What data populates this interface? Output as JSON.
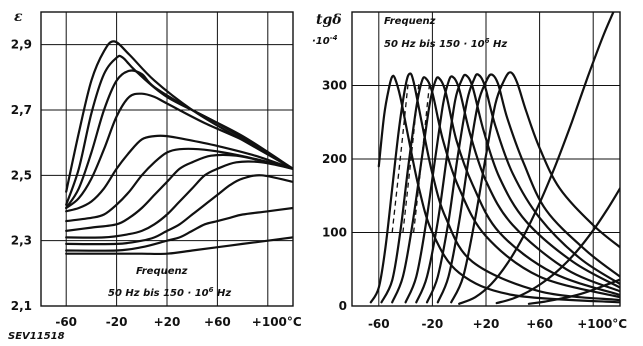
{
  "figure_id": "SEV11518",
  "chart_data": [
    {
      "type": "line",
      "title": "",
      "ylabel": "ε",
      "xunit": "°C",
      "xlim": [
        -80,
        120
      ],
      "ylim": [
        2.1,
        3.0
      ],
      "grid": true,
      "xticks": [
        {
          "value": -60,
          "label": "-60"
        },
        {
          "value": -20,
          "label": "-20"
        },
        {
          "value": 20,
          "label": "+20"
        },
        {
          "value": 60,
          "label": "+60"
        },
        {
          "value": 100,
          "label": "+100°C"
        }
      ],
      "yticks": [
        {
          "value": 2.1,
          "label": "2,1"
        },
        {
          "value": 2.3,
          "label": "2,3"
        },
        {
          "value": 2.5,
          "label": "2,5"
        },
        {
          "value": 2.7,
          "label": "2,7"
        },
        {
          "value": 2.9,
          "label": "2,9"
        }
      ],
      "gridlines_x": [
        -60,
        -20,
        20,
        60,
        100
      ],
      "gridlines_y": [
        2.3,
        2.5,
        2.7,
        2.9
      ],
      "annotation": [
        "Frequenz",
        "50 Hz bis 150 · 10^6 Hz"
      ],
      "series": [
        {
          "x": [
            -60,
            -50,
            -40,
            -30,
            -22,
            -10,
            10,
            40,
            70,
            120
          ],
          "y": [
            2.45,
            2.63,
            2.79,
            2.88,
            2.91,
            2.87,
            2.79,
            2.7,
            2.63,
            2.52
          ]
        },
        {
          "x": [
            -60,
            -50,
            -40,
            -30,
            -20,
            -15,
            -5,
            20,
            60,
            120
          ],
          "y": [
            2.41,
            2.52,
            2.69,
            2.81,
            2.86,
            2.86,
            2.82,
            2.74,
            2.66,
            2.52
          ]
        },
        {
          "x": [
            -60,
            -50,
            -40,
            -30,
            -20,
            -10,
            0,
            10,
            40,
            80,
            120
          ],
          "y": [
            2.4,
            2.46,
            2.57,
            2.7,
            2.79,
            2.82,
            2.81,
            2.77,
            2.7,
            2.62,
            2.52
          ]
        },
        {
          "x": [
            -60,
            -50,
            -40,
            -30,
            -20,
            -10,
            0,
            10,
            20,
            50,
            90,
            120
          ],
          "y": [
            2.4,
            2.43,
            2.49,
            2.58,
            2.68,
            2.74,
            2.75,
            2.74,
            2.72,
            2.66,
            2.59,
            2.52
          ]
        },
        {
          "x": [
            -60,
            -50,
            -40,
            -30,
            -20,
            -10,
            0,
            10,
            20,
            35,
            60,
            90,
            120
          ],
          "y": [
            2.39,
            2.4,
            2.42,
            2.46,
            2.52,
            2.57,
            2.61,
            2.62,
            2.62,
            2.61,
            2.59,
            2.56,
            2.52
          ]
        },
        {
          "x": [
            -60,
            -40,
            -30,
            -20,
            -10,
            0,
            10,
            20,
            30,
            45,
            65,
            90,
            120
          ],
          "y": [
            2.36,
            2.37,
            2.38,
            2.41,
            2.45,
            2.5,
            2.54,
            2.57,
            2.58,
            2.58,
            2.57,
            2.55,
            2.52
          ]
        },
        {
          "x": [
            -60,
            -40,
            -20,
            -10,
            0,
            10,
            20,
            30,
            40,
            55,
            75,
            100,
            120
          ],
          "y": [
            2.33,
            2.34,
            2.35,
            2.37,
            2.4,
            2.44,
            2.48,
            2.52,
            2.54,
            2.56,
            2.56,
            2.54,
            2.52
          ]
        },
        {
          "x": [
            -60,
            -30,
            -10,
            0,
            10,
            20,
            30,
            40,
            50,
            60,
            75,
            95,
            120
          ],
          "y": [
            2.31,
            2.31,
            2.32,
            2.33,
            2.35,
            2.38,
            2.42,
            2.46,
            2.5,
            2.52,
            2.54,
            2.54,
            2.52
          ]
        },
        {
          "x": [
            -60,
            -20,
            0,
            10,
            20,
            30,
            40,
            50,
            60,
            70,
            80,
            95,
            120
          ],
          "y": [
            2.29,
            2.29,
            2.3,
            2.31,
            2.33,
            2.35,
            2.38,
            2.41,
            2.44,
            2.47,
            2.49,
            2.5,
            2.48
          ]
        },
        {
          "x": [
            -60,
            -20,
            0,
            20,
            30,
            40,
            50,
            60,
            70,
            80,
            100,
            120
          ],
          "y": [
            2.27,
            2.27,
            2.28,
            2.3,
            2.31,
            2.33,
            2.35,
            2.36,
            2.37,
            2.38,
            2.39,
            2.4
          ]
        },
        {
          "x": [
            -60,
            -20,
            0,
            20,
            40,
            60,
            80,
            100,
            120
          ],
          "y": [
            2.26,
            2.26,
            2.26,
            2.26,
            2.27,
            2.28,
            2.29,
            2.3,
            2.31
          ]
        }
      ]
    },
    {
      "type": "line",
      "title": "",
      "ylabel": "tgδ ·10^-4",
      "ylabel_lines": [
        "tgδ",
        "·10^-4"
      ],
      "xunit": "°C",
      "xlim": [
        -80,
        120
      ],
      "ylim": [
        0,
        400
      ],
      "grid": true,
      "xticks": [
        {
          "value": -60,
          "label": "-60"
        },
        {
          "value": -20,
          "label": "-20"
        },
        {
          "value": 20,
          "label": "+20"
        },
        {
          "value": 60,
          "label": "+60"
        },
        {
          "value": 100,
          "label": "+100°C"
        }
      ],
      "yticks": [
        {
          "value": 0,
          "label": "0"
        },
        {
          "value": 100,
          "label": "100"
        },
        {
          "value": 200,
          "label": "200"
        },
        {
          "value": 300,
          "label": "300"
        }
      ],
      "gridlines_x": [
        -60,
        -20,
        20,
        60,
        100
      ],
      "gridlines_y": [
        100,
        200,
        300
      ],
      "annotation": [
        "Frequenz",
        "50 Hz bis 150 · 10^6 Hz"
      ],
      "series": [
        {
          "x": [
            -60,
            -56,
            -52,
            -50,
            -48,
            -44,
            -38,
            -30,
            -20,
            0,
            40,
            120
          ],
          "y": [
            190,
            260,
            300,
            312,
            310,
            285,
            230,
            160,
            100,
            45,
            15,
            5
          ]
        },
        {
          "x": [
            -66,
            -60,
            -55,
            -50,
            -45,
            -40,
            -37,
            -34,
            -28,
            -20,
            -10,
            10,
            60,
            120
          ],
          "y": [
            5,
            25,
            80,
            160,
            240,
            300,
            316,
            305,
            250,
            180,
            120,
            60,
            20,
            8
          ]
        },
        {
          "x": [
            -58,
            -50,
            -44,
            -38,
            -32,
            -28,
            -25,
            -20,
            -12,
            0,
            20,
            60,
            120
          ],
          "y": [
            5,
            35,
            100,
            190,
            270,
            305,
            310,
            290,
            225,
            160,
            95,
            40,
            12
          ]
        },
        {
          "x": [
            -50,
            -42,
            -35,
            -28,
            -22,
            -18,
            -15,
            -10,
            -2,
            10,
            30,
            70,
            120
          ],
          "y": [
            5,
            40,
            110,
            200,
            275,
            305,
            310,
            290,
            225,
            165,
            100,
            45,
            15
          ]
        },
        {
          "x": [
            -40,
            -32,
            -25,
            -18,
            -12,
            -8,
            -5,
            0,
            8,
            20,
            40,
            80,
            120
          ],
          "y": [
            5,
            40,
            110,
            200,
            275,
            305,
            312,
            295,
            235,
            170,
            110,
            50,
            20
          ]
        },
        {
          "x": [
            -32,
            -24,
            -16,
            -9,
            -3,
            2,
            5,
            10,
            18,
            30,
            50,
            85,
            120
          ],
          "y": [
            5,
            40,
            115,
            205,
            280,
            308,
            314,
            298,
            240,
            175,
            115,
            60,
            25
          ]
        },
        {
          "x": [
            -24,
            -16,
            -8,
            -1,
            6,
            11,
            14,
            19,
            27,
            40,
            60,
            90,
            120
          ],
          "y": [
            5,
            40,
            115,
            205,
            280,
            308,
            315,
            300,
            245,
            180,
            120,
            65,
            30
          ]
        },
        {
          "x": [
            -16,
            -8,
            0,
            7,
            14,
            20,
            24,
            29,
            36,
            48,
            65,
            95,
            120
          ],
          "y": [
            5,
            40,
            115,
            200,
            275,
            305,
            315,
            302,
            255,
            195,
            130,
            75,
            40
          ]
        },
        {
          "x": [
            -6,
            3,
            12,
            20,
            27,
            33,
            38,
            43,
            50,
            60,
            75,
            100,
            120
          ],
          "y": [
            5,
            40,
            120,
            205,
            275,
            305,
            318,
            305,
            265,
            215,
            160,
            110,
            80
          ]
        },
        {
          "x": [
            0,
            12,
            24,
            36,
            48,
            60,
            72,
            84,
            96,
            108,
            120
          ],
          "y": [
            3,
            12,
            30,
            58,
            95,
            140,
            192,
            250,
            312,
            370,
            420
          ]
        },
        {
          "x": [
            28,
            40,
            52,
            64,
            76,
            88,
            100,
            110,
            120
          ],
          "y": [
            4,
            10,
            20,
            34,
            52,
            75,
            103,
            130,
            160
          ]
        },
        {
          "x": [
            52,
            64,
            76,
            88,
            100,
            110,
            120
          ],
          "y": [
            3,
            6,
            10,
            15,
            22,
            29,
            36
          ]
        }
      ],
      "dashed_series": [
        {
          "x": [
            -50,
            -44,
            -40,
            -38
          ],
          "y": [
            100,
            200,
            270,
            305
          ]
        },
        {
          "x": [
            -42,
            -36,
            -32,
            -30
          ],
          "y": [
            100,
            200,
            270,
            305
          ]
        },
        {
          "x": [
            -34,
            -28,
            -24,
            -22
          ],
          "y": [
            100,
            200,
            270,
            305
          ]
        }
      ]
    }
  ]
}
